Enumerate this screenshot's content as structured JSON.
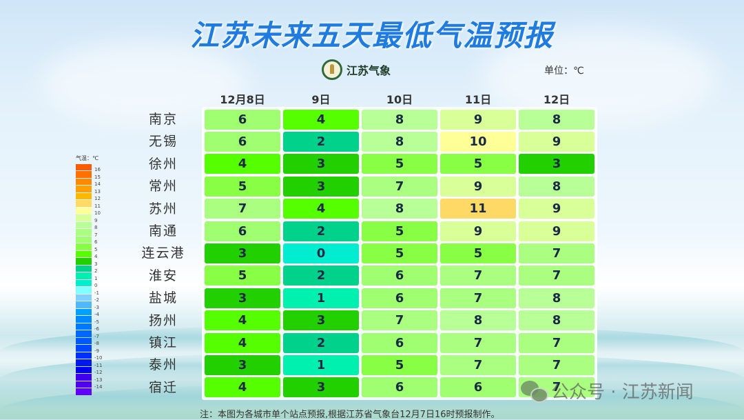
{
  "title": "江苏未来五天最低气温预报",
  "logo_text": "江苏气象",
  "unit_label": "单位：℃",
  "note": "注：本图为各城市单个站点预报,根据江苏省气象台12月7日16时预报制作。",
  "watermark": "公众号 · 江苏新闻",
  "columns": [
    "12月8日",
    "9日",
    "10日",
    "11日",
    "12日"
  ],
  "cities": [
    "南京",
    "无锡",
    "徐州",
    "常州",
    "苏州",
    "南通",
    "连云港",
    "淮安",
    "盐城",
    "扬州",
    "镇江",
    "泰州",
    "宿迁"
  ],
  "legend": {
    "title": "气温：℃",
    "items": [
      {
        "label": "16",
        "color": "#FF5A00"
      },
      {
        "label": "15",
        "color": "#FF7000"
      },
      {
        "label": "14",
        "color": "#FF8800"
      },
      {
        "label": "13",
        "color": "#FFA000"
      },
      {
        "label": "12",
        "color": "#FFB800"
      },
      {
        "label": "11",
        "color": "#FFD966"
      },
      {
        "label": "10",
        "color": "#FFFF98"
      },
      {
        "label": "9",
        "color": "#D8FF98"
      },
      {
        "label": "8",
        "color": "#B8FF98"
      },
      {
        "label": "7",
        "color": "#AAFF80"
      },
      {
        "label": "6",
        "color": "#A0FF70"
      },
      {
        "label": "5",
        "color": "#88FF44"
      },
      {
        "label": "4",
        "color": "#55FF00"
      },
      {
        "label": "3",
        "color": "#22D000"
      },
      {
        "label": "2",
        "color": "#00D28C"
      },
      {
        "label": "1",
        "color": "#00F0B0"
      },
      {
        "label": "0",
        "color": "#00EED0"
      },
      {
        "label": "-1",
        "color": "#7FFFFF"
      },
      {
        "label": "-2",
        "color": "#80D0FF"
      },
      {
        "label": "-3",
        "color": "#50B8FF"
      },
      {
        "label": "-4",
        "color": "#00A0FF"
      },
      {
        "label": "-5",
        "color": "#0088FF"
      },
      {
        "label": "-6",
        "color": "#0078FF"
      },
      {
        "label": "-7",
        "color": "#0068FF"
      },
      {
        "label": "-8",
        "color": "#0058FF"
      },
      {
        "label": "-9",
        "color": "#0048FF"
      },
      {
        "label": "-10",
        "color": "#0030FF"
      },
      {
        "label": "-11",
        "color": "#0018F0"
      },
      {
        "label": "-12",
        "color": "#0000F0"
      },
      {
        "label": "-13",
        "color": "#4000F0"
      },
      {
        "label": "-14",
        "color": "#5000F0"
      },
      {
        "label": "",
        "color": "#6000FF"
      }
    ]
  },
  "chart_data": {
    "type": "heatmap",
    "title": "江苏未来五天最低气温预报",
    "unit": "℃",
    "x": [
      "12月8日",
      "9日",
      "10日",
      "11日",
      "12日"
    ],
    "y": [
      "南京",
      "无锡",
      "徐州",
      "常州",
      "苏州",
      "南通",
      "连云港",
      "淮安",
      "盐城",
      "扬州",
      "镇江",
      "泰州",
      "宿迁"
    ],
    "values": [
      [
        6,
        4,
        8,
        9,
        8
      ],
      [
        6,
        2,
        8,
        10,
        9
      ],
      [
        4,
        3,
        5,
        5,
        3
      ],
      [
        5,
        3,
        7,
        9,
        8
      ],
      [
        7,
        4,
        8,
        11,
        9
      ],
      [
        6,
        2,
        5,
        9,
        9
      ],
      [
        3,
        0,
        5,
        5,
        7
      ],
      [
        5,
        2,
        6,
        7,
        7
      ],
      [
        3,
        1,
        6,
        7,
        8
      ],
      [
        4,
        3,
        7,
        8,
        8
      ],
      [
        4,
        2,
        6,
        7,
        7
      ],
      [
        3,
        1,
        5,
        7,
        7
      ],
      [
        4,
        3,
        6,
        6,
        7
      ]
    ],
    "color_scale": {
      "0": "#00EED0",
      "1": "#00F0B0",
      "2": "#00D28C",
      "3": "#22D000",
      "4": "#55FF00",
      "5": "#88FF44",
      "6": "#A0FF70",
      "7": "#AAFF80",
      "8": "#B8FF98",
      "9": "#D8FF98",
      "10": "#FFFF98",
      "11": "#FFD966"
    },
    "legend_range": [
      -14,
      16
    ],
    "legend_position": "left"
  }
}
